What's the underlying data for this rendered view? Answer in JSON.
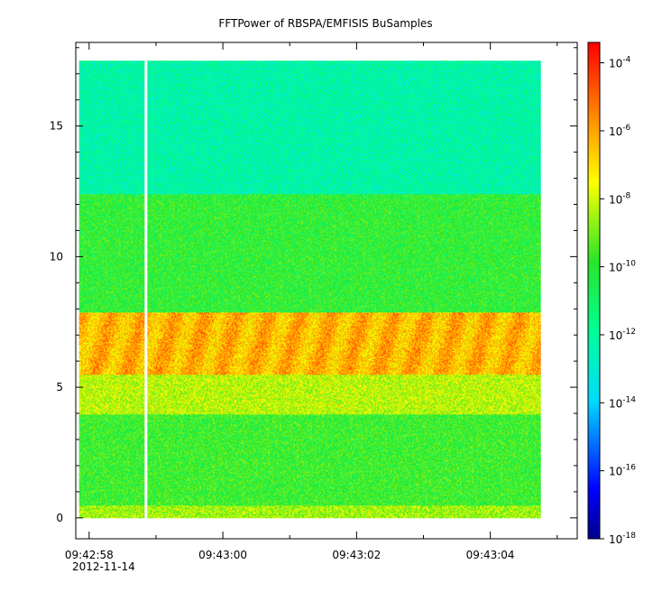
{
  "chart_data": {
    "type": "heatmap",
    "title": "FFTPower of RBSPA/EMFISIS  BuSamples",
    "date_label": "2012-11-14",
    "x_tick_labels": [
      "09:42:58",
      "09:43:00",
      "09:43:02",
      "09:43:04"
    ],
    "x_tick_seconds": [
      0,
      2,
      4,
      6
    ],
    "x_range_seconds": [
      -0.2,
      7.3
    ],
    "data_x_range_seconds": [
      -0.15,
      6.75
    ],
    "gap_seconds": 0.85,
    "y_ticks": [
      0,
      5,
      10,
      15
    ],
    "y_tick_labels": [
      "0",
      "5",
      "10",
      "15"
    ],
    "y_range": [
      -0.8,
      18.2
    ],
    "data_y_range": [
      0,
      17.5
    ],
    "colorbar": {
      "scale": "log",
      "exponent_range": [
        -18,
        -3.4
      ],
      "tick_exponents": [
        -4,
        -6,
        -8,
        -10,
        -12,
        -14,
        -16,
        -18
      ],
      "tick_base": "10",
      "tick_exponent_labels": [
        "-4",
        "-6",
        "-8",
        "-10",
        "-12",
        "-14",
        "-16",
        "-18"
      ]
    },
    "bands": [
      {
        "y_from": 0,
        "y_to": 0.5,
        "log_power": -8.5
      },
      {
        "y_from": 0.5,
        "y_to": 4,
        "log_power": -9.8
      },
      {
        "y_from": 4,
        "y_to": 5.5,
        "log_power": -8.2
      },
      {
        "y_from": 5.5,
        "y_to": 7.9,
        "log_power": -6.3
      },
      {
        "y_from": 7.9,
        "y_to": 12.4,
        "log_power": -10.0
      },
      {
        "y_from": 12.4,
        "y_to": 17.5,
        "log_power": -12.2
      }
    ],
    "colors": {
      "background": "#ffffff",
      "frame": "#000000",
      "gap": "#ffffff"
    }
  }
}
